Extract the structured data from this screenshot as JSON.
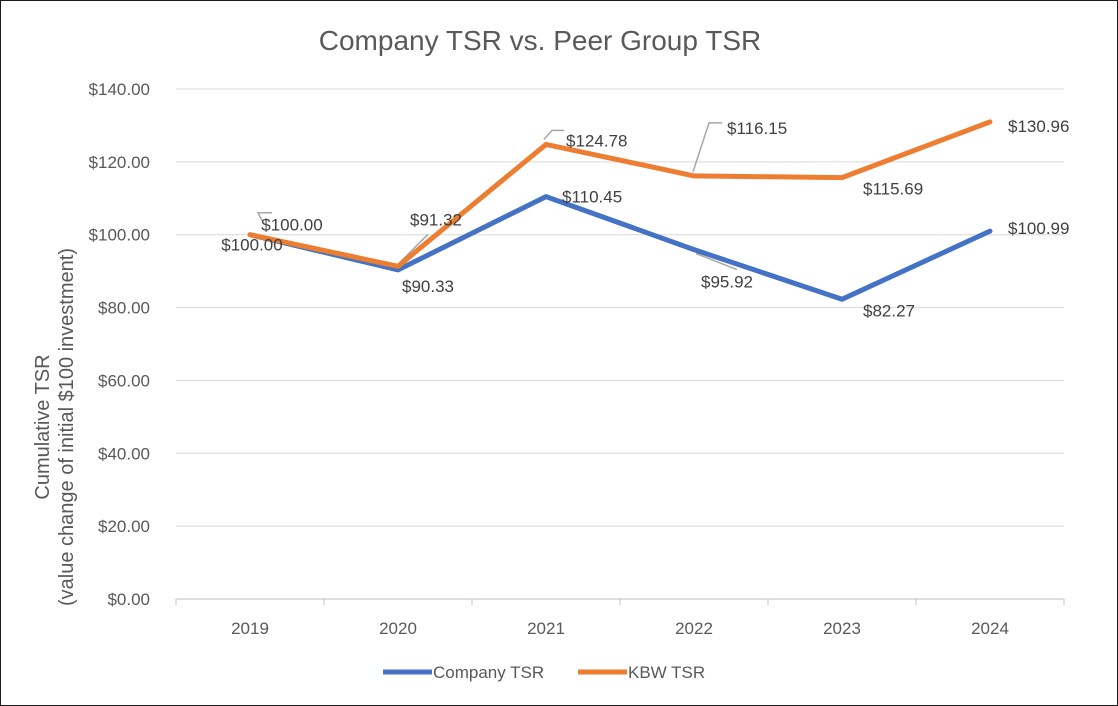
{
  "chart_data": {
    "type": "line",
    "title": "Company TSR vs. Peer Group TSR",
    "xlabel": "",
    "ylabel_line1": "Cumulative TSR",
    "ylabel_line2": "(value change of initial $100 investment)",
    "categories": [
      "2019",
      "2020",
      "2021",
      "2022",
      "2023",
      "2024"
    ],
    "ylim": [
      0,
      140
    ],
    "ytick_values": [
      0,
      20,
      40,
      60,
      80,
      100,
      120,
      140
    ],
    "ytick_labels": [
      "$0.00",
      "$20.00",
      "$40.00",
      "$60.00",
      "$80.00",
      "$100.00",
      "$120.00",
      "$140.00"
    ],
    "grid": true,
    "legend_position": "bottom",
    "series": [
      {
        "name": "Company TSR",
        "color": "#4472C4",
        "values": [
          100.0,
          90.33,
          110.45,
          95.92,
          82.27,
          100.99
        ],
        "labels": [
          "$100.00",
          "$90.33",
          "$110.45",
          "$95.92",
          "$82.27",
          "$100.99"
        ]
      },
      {
        "name": "KBW TSR",
        "color": "#ED7D31",
        "values": [
          100.0,
          91.32,
          124.78,
          116.15,
          115.69,
          130.96
        ],
        "labels": [
          "$100.00",
          "$91.32",
          "$124.78",
          "$116.15",
          "$115.69",
          "$130.96"
        ]
      }
    ]
  }
}
